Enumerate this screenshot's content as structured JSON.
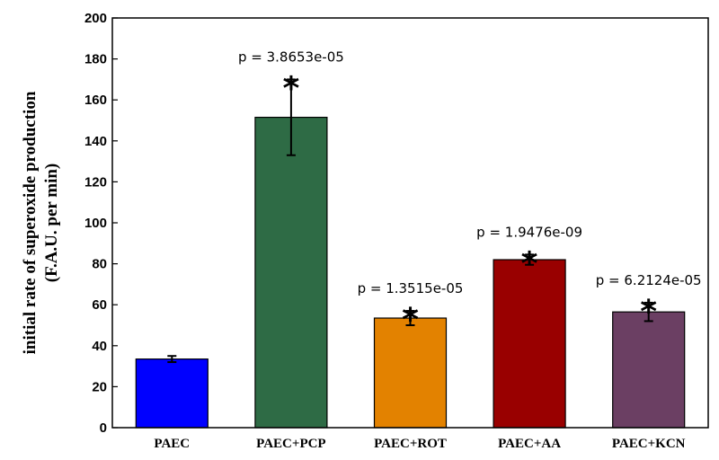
{
  "chart_data": {
    "type": "bar",
    "categories": [
      "PAEC",
      "PAEC+PCP",
      "PAEC+ROT",
      "PAEC+AA",
      "PAEC+KCN"
    ],
    "values": [
      33.5,
      151.5,
      53.5,
      82,
      56.5
    ],
    "errors": [
      1.5,
      18.5,
      3.5,
      2.5,
      4.5
    ],
    "colors": [
      "#0000ff",
      "#2e6b45",
      "#e38200",
      "#990000",
      "#6b3f63"
    ],
    "p_values": [
      "",
      "p = 3.8653e-05",
      "p = 1.3515e-05",
      "p = 1.9476e-09",
      "p = 6.2124e-05"
    ],
    "significance": [
      "",
      "*",
      "*",
      "*",
      "*"
    ],
    "ylabel_line1": "initial rate of superoxide production",
    "ylabel_line2": "(F.A.U. per min)",
    "xlabel": "",
    "ylim": [
      0,
      200
    ],
    "yticks": [
      0,
      20,
      40,
      60,
      80,
      100,
      120,
      140,
      160,
      180,
      200
    ],
    "grid": false
  }
}
